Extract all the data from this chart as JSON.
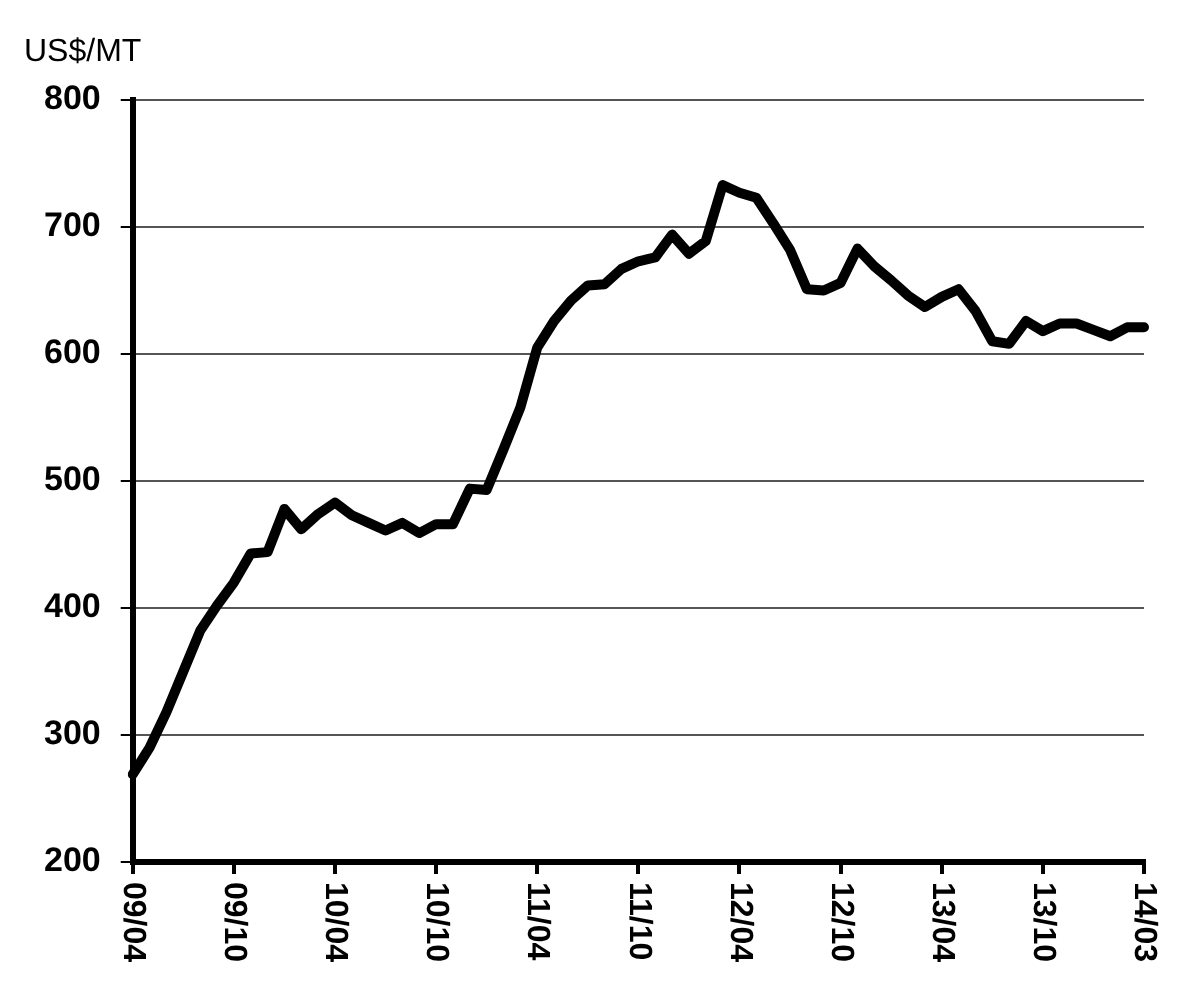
{
  "chart_data": {
    "type": "line",
    "ylabel": "US$/MT",
    "categories": [
      "09/04",
      null,
      null,
      null,
      null,
      null,
      "09/10",
      null,
      null,
      null,
      null,
      null,
      "10/04",
      null,
      null,
      null,
      null,
      null,
      "10/10",
      null,
      null,
      null,
      null,
      null,
      "11/04",
      null,
      null,
      null,
      null,
      null,
      "11/10",
      null,
      null,
      null,
      null,
      null,
      "12/04",
      null,
      null,
      null,
      null,
      null,
      "12/10",
      null,
      null,
      null,
      null,
      null,
      "13/04",
      null,
      null,
      null,
      null,
      null,
      "13/10",
      null,
      null,
      null,
      null,
      null,
      "14/03"
    ],
    "series": [
      {
        "color": "#000000",
        "values": [
          269,
          290,
          318,
          350,
          382,
          402,
          420,
          443,
          444,
          478,
          462,
          474,
          483,
          473,
          467,
          461,
          467,
          459,
          466,
          466,
          494,
          493,
          525,
          558,
          605,
          626,
          642,
          654,
          655,
          667,
          673,
          676,
          694,
          679,
          689,
          733,
          727,
          723,
          703,
          682,
          651,
          650,
          656,
          683,
          669,
          658,
          646,
          637,
          645,
          651,
          634,
          610,
          608,
          626,
          618,
          624,
          624,
          619,
          614,
          621,
          621
        ]
      }
    ],
    "ylim": [
      200,
      800
    ],
    "yticks": [
      200,
      300,
      400,
      500,
      600,
      700,
      800
    ],
    "grid": "y",
    "legend": false,
    "marker": "none",
    "line_style": "solid"
  }
}
